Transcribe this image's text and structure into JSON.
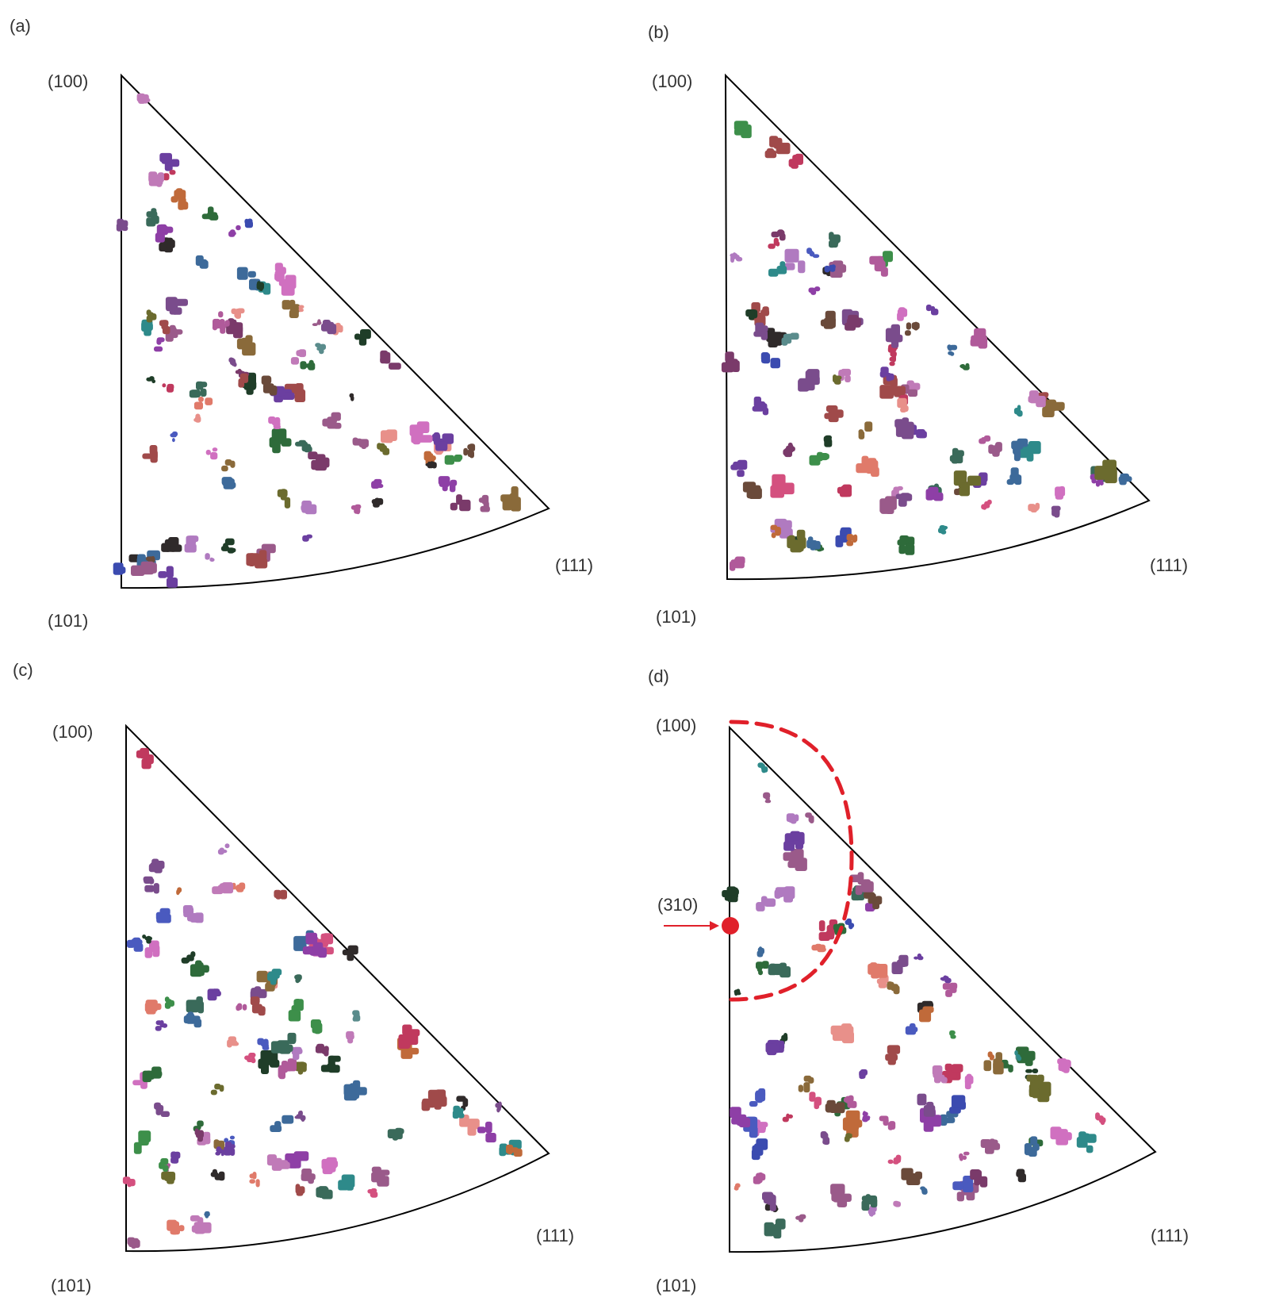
{
  "panels": [
    {
      "id": "a",
      "label": "(a)",
      "pole_100": "(100)",
      "pole_101": "(101)",
      "pole_111": "(111)"
    },
    {
      "id": "b",
      "label": "(b)",
      "pole_100": "(100)",
      "pole_101": "(101)",
      "pole_111": "(111)"
    },
    {
      "id": "c",
      "label": "(c)",
      "pole_100": "(100)",
      "pole_101": "(101)",
      "pole_111": "(111)"
    },
    {
      "id": "d",
      "label": "(d)",
      "pole_100": "(100)",
      "pole_101": "(101)",
      "pole_111": "(111)",
      "marker_label": "(310)"
    }
  ],
  "colors": {
    "outline": "#000000",
    "marker": "#e0202a",
    "palette": [
      "#8e3fa6",
      "#6b3fa0",
      "#3b4bb0",
      "#c0395e",
      "#d4507f",
      "#b05a9a",
      "#7a4c8c",
      "#2f2a2a",
      "#1f3d28",
      "#2e6b3a",
      "#3d8f4a",
      "#6b6b2e",
      "#8a6a3a",
      "#c06a3a",
      "#e07a6a",
      "#e8908a",
      "#5a8c8c",
      "#2e8a8a",
      "#3d6a9a",
      "#9a5a8a",
      "#c07ab8",
      "#7a3a6a",
      "#4a5abf",
      "#d070c0",
      "#a04a4a",
      "#6a4a3a",
      "#3a6a5a",
      "#b07ac0"
    ]
  }
}
